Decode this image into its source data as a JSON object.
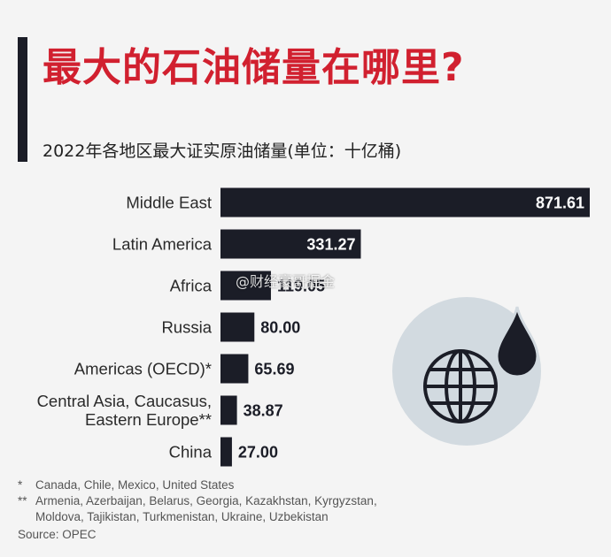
{
  "title": "最大的石油储量在哪里?",
  "subtitle": "2022年各地区最大证实原油储量(单位：十亿桶)",
  "chart_data": {
    "type": "bar",
    "orientation": "horizontal",
    "categories": [
      [
        "Middle East"
      ],
      [
        "Latin America"
      ],
      [
        "Africa"
      ],
      [
        "Russia"
      ],
      [
        "Americas (OECD)*"
      ],
      [
        "Central Asia, Caucasus,",
        "Eastern Europe**"
      ],
      [
        "China"
      ]
    ],
    "values": [
      871.61,
      331.27,
      119.05,
      80.0,
      65.69,
      38.87,
      27.0
    ],
    "value_labels": [
      "871.61",
      "331.27",
      "119.05",
      "80.00",
      "65.69",
      "38.87",
      "27.00"
    ],
    "xlim": [
      0,
      871.61
    ],
    "grid": false,
    "bar_color": "#1b1d27"
  },
  "footnotes": [
    {
      "mark": "*",
      "text": "Canada, Chile, Mexico, United States"
    },
    {
      "mark": "**",
      "text": "Armenia, Azerbaijan, Belarus, Georgia, Kazakhstan, Kyrgyzstan,"
    },
    {
      "mark": "",
      "text": "Moldova, Tajikistan, Turkmenistan, Ukraine, Uzbekistan"
    }
  ],
  "source": "Source: OPEC",
  "watermark": "@财经豪哥掘金",
  "icon": "oil-drop-globe-icon",
  "colors": {
    "title": "#d1202f",
    "bar": "#1b1d27",
    "icon_circle": "#d2dae0",
    "background": "#f4f4f4"
  }
}
